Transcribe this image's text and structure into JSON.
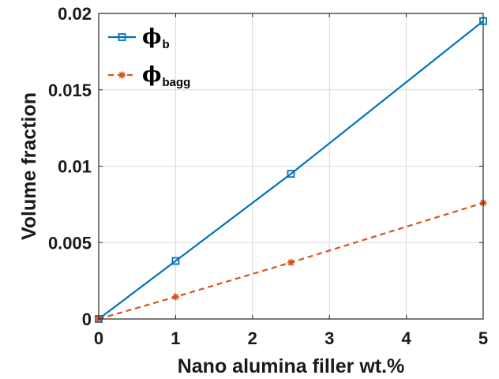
{
  "chart_data": {
    "type": "line",
    "xlabel": "Nano alumina filler wt.%",
    "ylabel": "Volume fraction",
    "xlim": [
      0,
      5
    ],
    "ylim": [
      0,
      0.02
    ],
    "x_ticks": [
      "0",
      "1",
      "2",
      "3",
      "4",
      "5"
    ],
    "y_ticks": [
      "0",
      "0.005",
      "0.01",
      "0.015",
      "0.02"
    ],
    "grid": true,
    "legend_position": "top-left",
    "series": [
      {
        "name": "ϕb",
        "name_symbol": "ϕ",
        "name_subscript": "b",
        "color": "#0072BD",
        "line_style": "solid",
        "marker": "square",
        "x": [
          0,
          1,
          2.5,
          5
        ],
        "y": [
          0,
          0.0038,
          0.0095,
          0.0195
        ]
      },
      {
        "name": "ϕbagg",
        "name_symbol": "ϕ",
        "name_subscript": "bagg",
        "color": "#D95319",
        "line_style": "dashed",
        "marker": "asterisk",
        "x": [
          0,
          1,
          2.5,
          5
        ],
        "y": [
          0,
          0.00145,
          0.0037,
          0.0076
        ]
      }
    ]
  }
}
